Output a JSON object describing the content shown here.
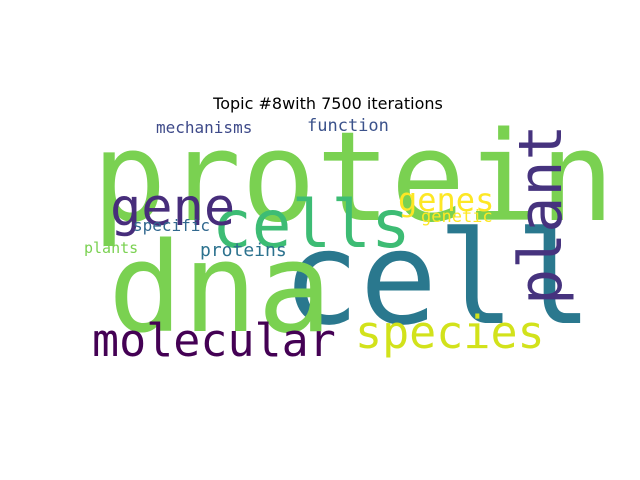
{
  "title": "Topic #8with 7500 iterations",
  "words": [
    {
      "key": "protein",
      "text": "protein",
      "color": "#7ad151"
    },
    {
      "key": "cell",
      "text": "cell",
      "color": "#2a788e"
    },
    {
      "key": "dna",
      "text": "dna",
      "color": "#7ad151"
    },
    {
      "key": "plant",
      "text": "plant",
      "color": "#46337e"
    },
    {
      "key": "cells",
      "text": "cells",
      "color": "#3dbc74"
    },
    {
      "key": "gene",
      "text": "gene",
      "color": "#472d7b"
    },
    {
      "key": "molecular",
      "text": "molecular",
      "color": "#440154"
    },
    {
      "key": "species",
      "text": "species",
      "color": "#d2e21b"
    },
    {
      "key": "genes",
      "text": "genes",
      "color": "#fde725"
    },
    {
      "key": "genetic",
      "text": "genetic",
      "color": "#fde725"
    },
    {
      "key": "mechanisms",
      "text": "mechanisms",
      "color": "#3e4a89"
    },
    {
      "key": "function",
      "text": "function",
      "color": "#3b528b"
    },
    {
      "key": "specific",
      "text": "specific",
      "color": "#31688e"
    },
    {
      "key": "plants",
      "text": "plants",
      "color": "#7ad151"
    },
    {
      "key": "proteins",
      "text": "proteins",
      "color": "#2c728e"
    }
  ]
}
